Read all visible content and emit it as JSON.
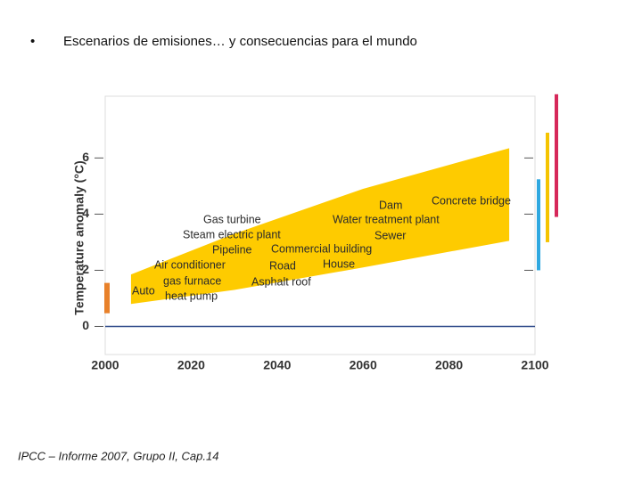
{
  "slide": {
    "bullet": "•",
    "heading": "Escenarios de emisiones… y consecuencias para el mundo",
    "footer": "IPCC – Informe 2007, Grupo II, Cap.14"
  },
  "chart_data": {
    "type": "band",
    "y_label": "Temperature anomaly  (°C)",
    "xlim": [
      2000,
      2100
    ],
    "xticks": [
      2000,
      2020,
      2040,
      2060,
      2080,
      2100
    ],
    "ylim": [
      -1,
      8.2
    ],
    "yticks": [
      0,
      2,
      4,
      6
    ],
    "band": {
      "color": "#fecb00",
      "x": [
        2006,
        2030,
        2060,
        2094
      ],
      "upper": [
        1.85,
        3.3,
        4.9,
        6.35
      ],
      "lower": [
        0.8,
        1.3,
        2.1,
        3.05
      ]
    },
    "zero_line": {
      "value": 0,
      "color": "#2f4a8a"
    },
    "start_bar": {
      "color": "#e8812a",
      "x": 2000,
      "low": 0.47,
      "high": 1.55
    },
    "range_bars": [
      {
        "color": "#2fa8e0",
        "low": 2.0,
        "high": 5.24
      },
      {
        "color": "#f5c400",
        "low": 3.0,
        "high": 6.9
      },
      {
        "color": "#d6285a",
        "low": 3.9,
        "high": 8.27
      }
    ],
    "annotations": [
      "Concrete bridge",
      "Dam",
      "Water treatment plant",
      "Sewer",
      "Gas turbine",
      "Steam electric plant",
      "Pipeline",
      "Commercial building",
      "Air conditioner",
      "Road",
      "House",
      "gas furnace",
      "Asphalt roof",
      "Auto",
      "heat pump"
    ]
  }
}
